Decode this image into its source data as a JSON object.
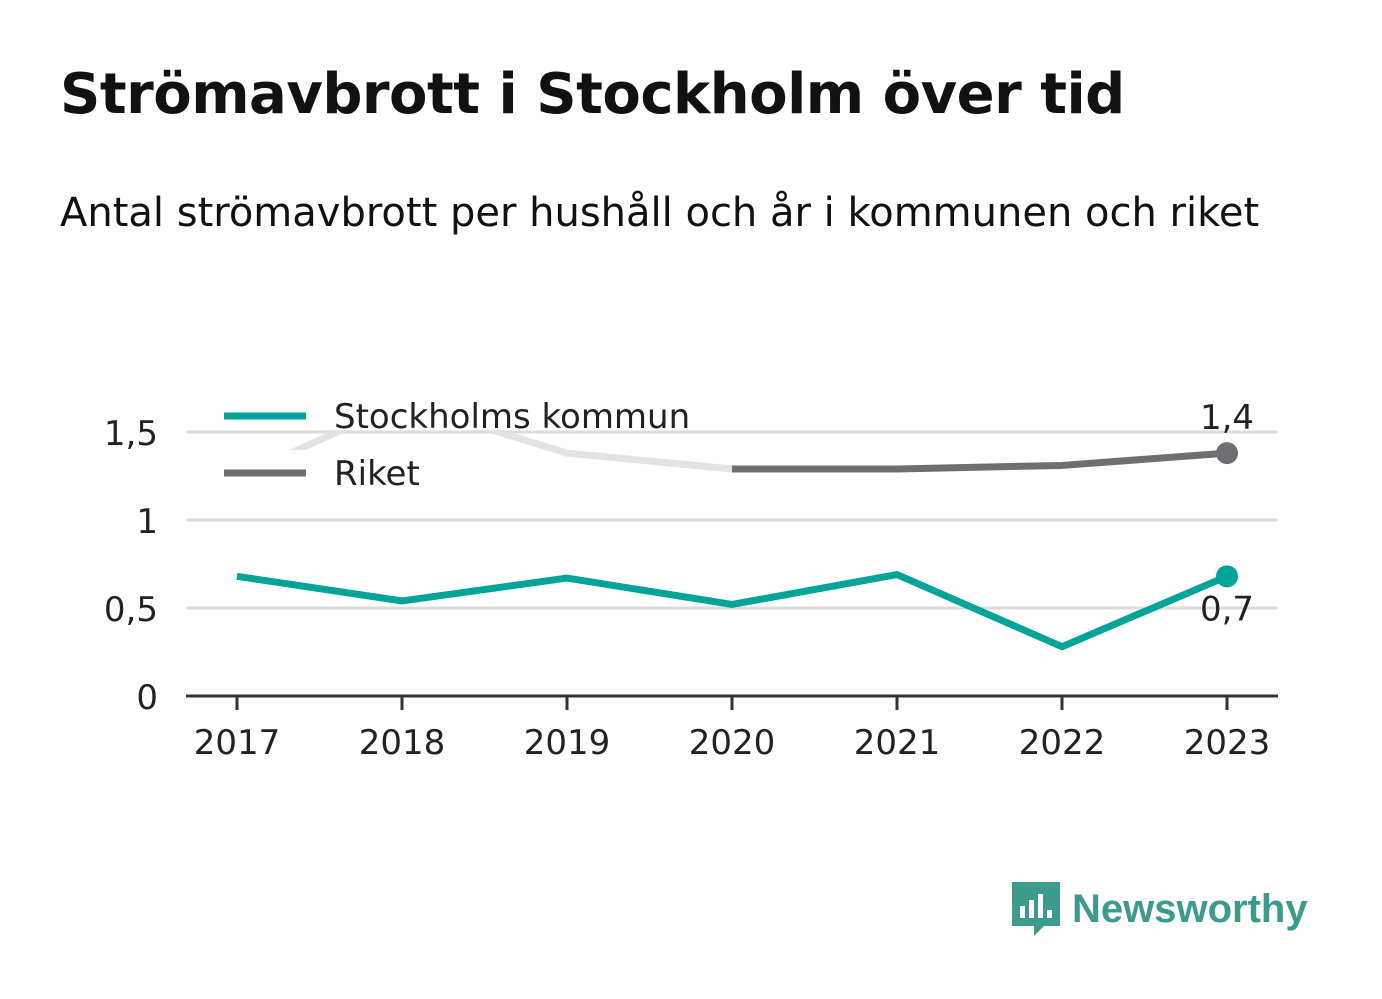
{
  "title": "Strömavbrott i Stockholm över tid",
  "subtitle": "Antal strömavbrott per hushåll och år i kommunen och riket",
  "brand": {
    "name": "Newsworthy",
    "icon": "newsworthy-logo-icon",
    "color": "#3d9b8e"
  },
  "chart_data": {
    "type": "line",
    "x": [
      "2017",
      "2018",
      "2019",
      "2020",
      "2021",
      "2022",
      "2023"
    ],
    "ylim": [
      0,
      1.8
    ],
    "yticks": [
      {
        "value": 0,
        "label": "0"
      },
      {
        "value": 0.5,
        "label": "0,5"
      },
      {
        "value": 1,
        "label": "1"
      },
      {
        "value": 1.5,
        "label": "1,5"
      }
    ],
    "grid": true,
    "legend": "top-left",
    "series": [
      {
        "name": "Stockholms kommun",
        "color": "#00a499",
        "values": [
          0.68,
          0.54,
          0.67,
          0.52,
          0.69,
          0.28,
          0.68
        ],
        "end_label": "0,7"
      },
      {
        "name": "Riket",
        "color": "#6e6e73",
        "faded_color": "#e3e3e3",
        "faded_until_index": 3,
        "values": [
          1.24,
          1.67,
          1.38,
          1.29,
          1.29,
          1.31,
          1.38
        ],
        "end_label": "1,4"
      }
    ]
  }
}
